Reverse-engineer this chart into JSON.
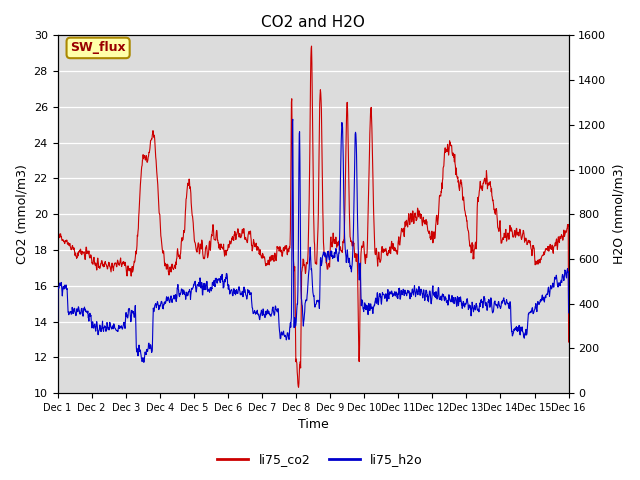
{
  "title": "CO2 and H2O",
  "xlabel": "Time",
  "ylabel_left": "CO2 (mmol/m3)",
  "ylabel_right": "H2O (mmol/m3)",
  "ylim_left": [
    10,
    30
  ],
  "ylim_right": [
    0,
    1600
  ],
  "yticks_left": [
    10,
    12,
    14,
    16,
    18,
    20,
    22,
    24,
    26,
    28,
    30
  ],
  "yticks_right": [
    0,
    200,
    400,
    600,
    800,
    1000,
    1200,
    1400,
    1600
  ],
  "color_co2": "#cc0000",
  "color_h2o": "#0000cc",
  "bg_color": "#dcdcdc",
  "annotation_text": "SW_flux",
  "annotation_bg": "#ffffaa",
  "annotation_border": "#aa8800",
  "legend_co2": "li75_co2",
  "legend_h2o": "li75_h2o",
  "n_points": 1500,
  "figsize": [
    6.4,
    4.8
  ],
  "dpi": 100
}
